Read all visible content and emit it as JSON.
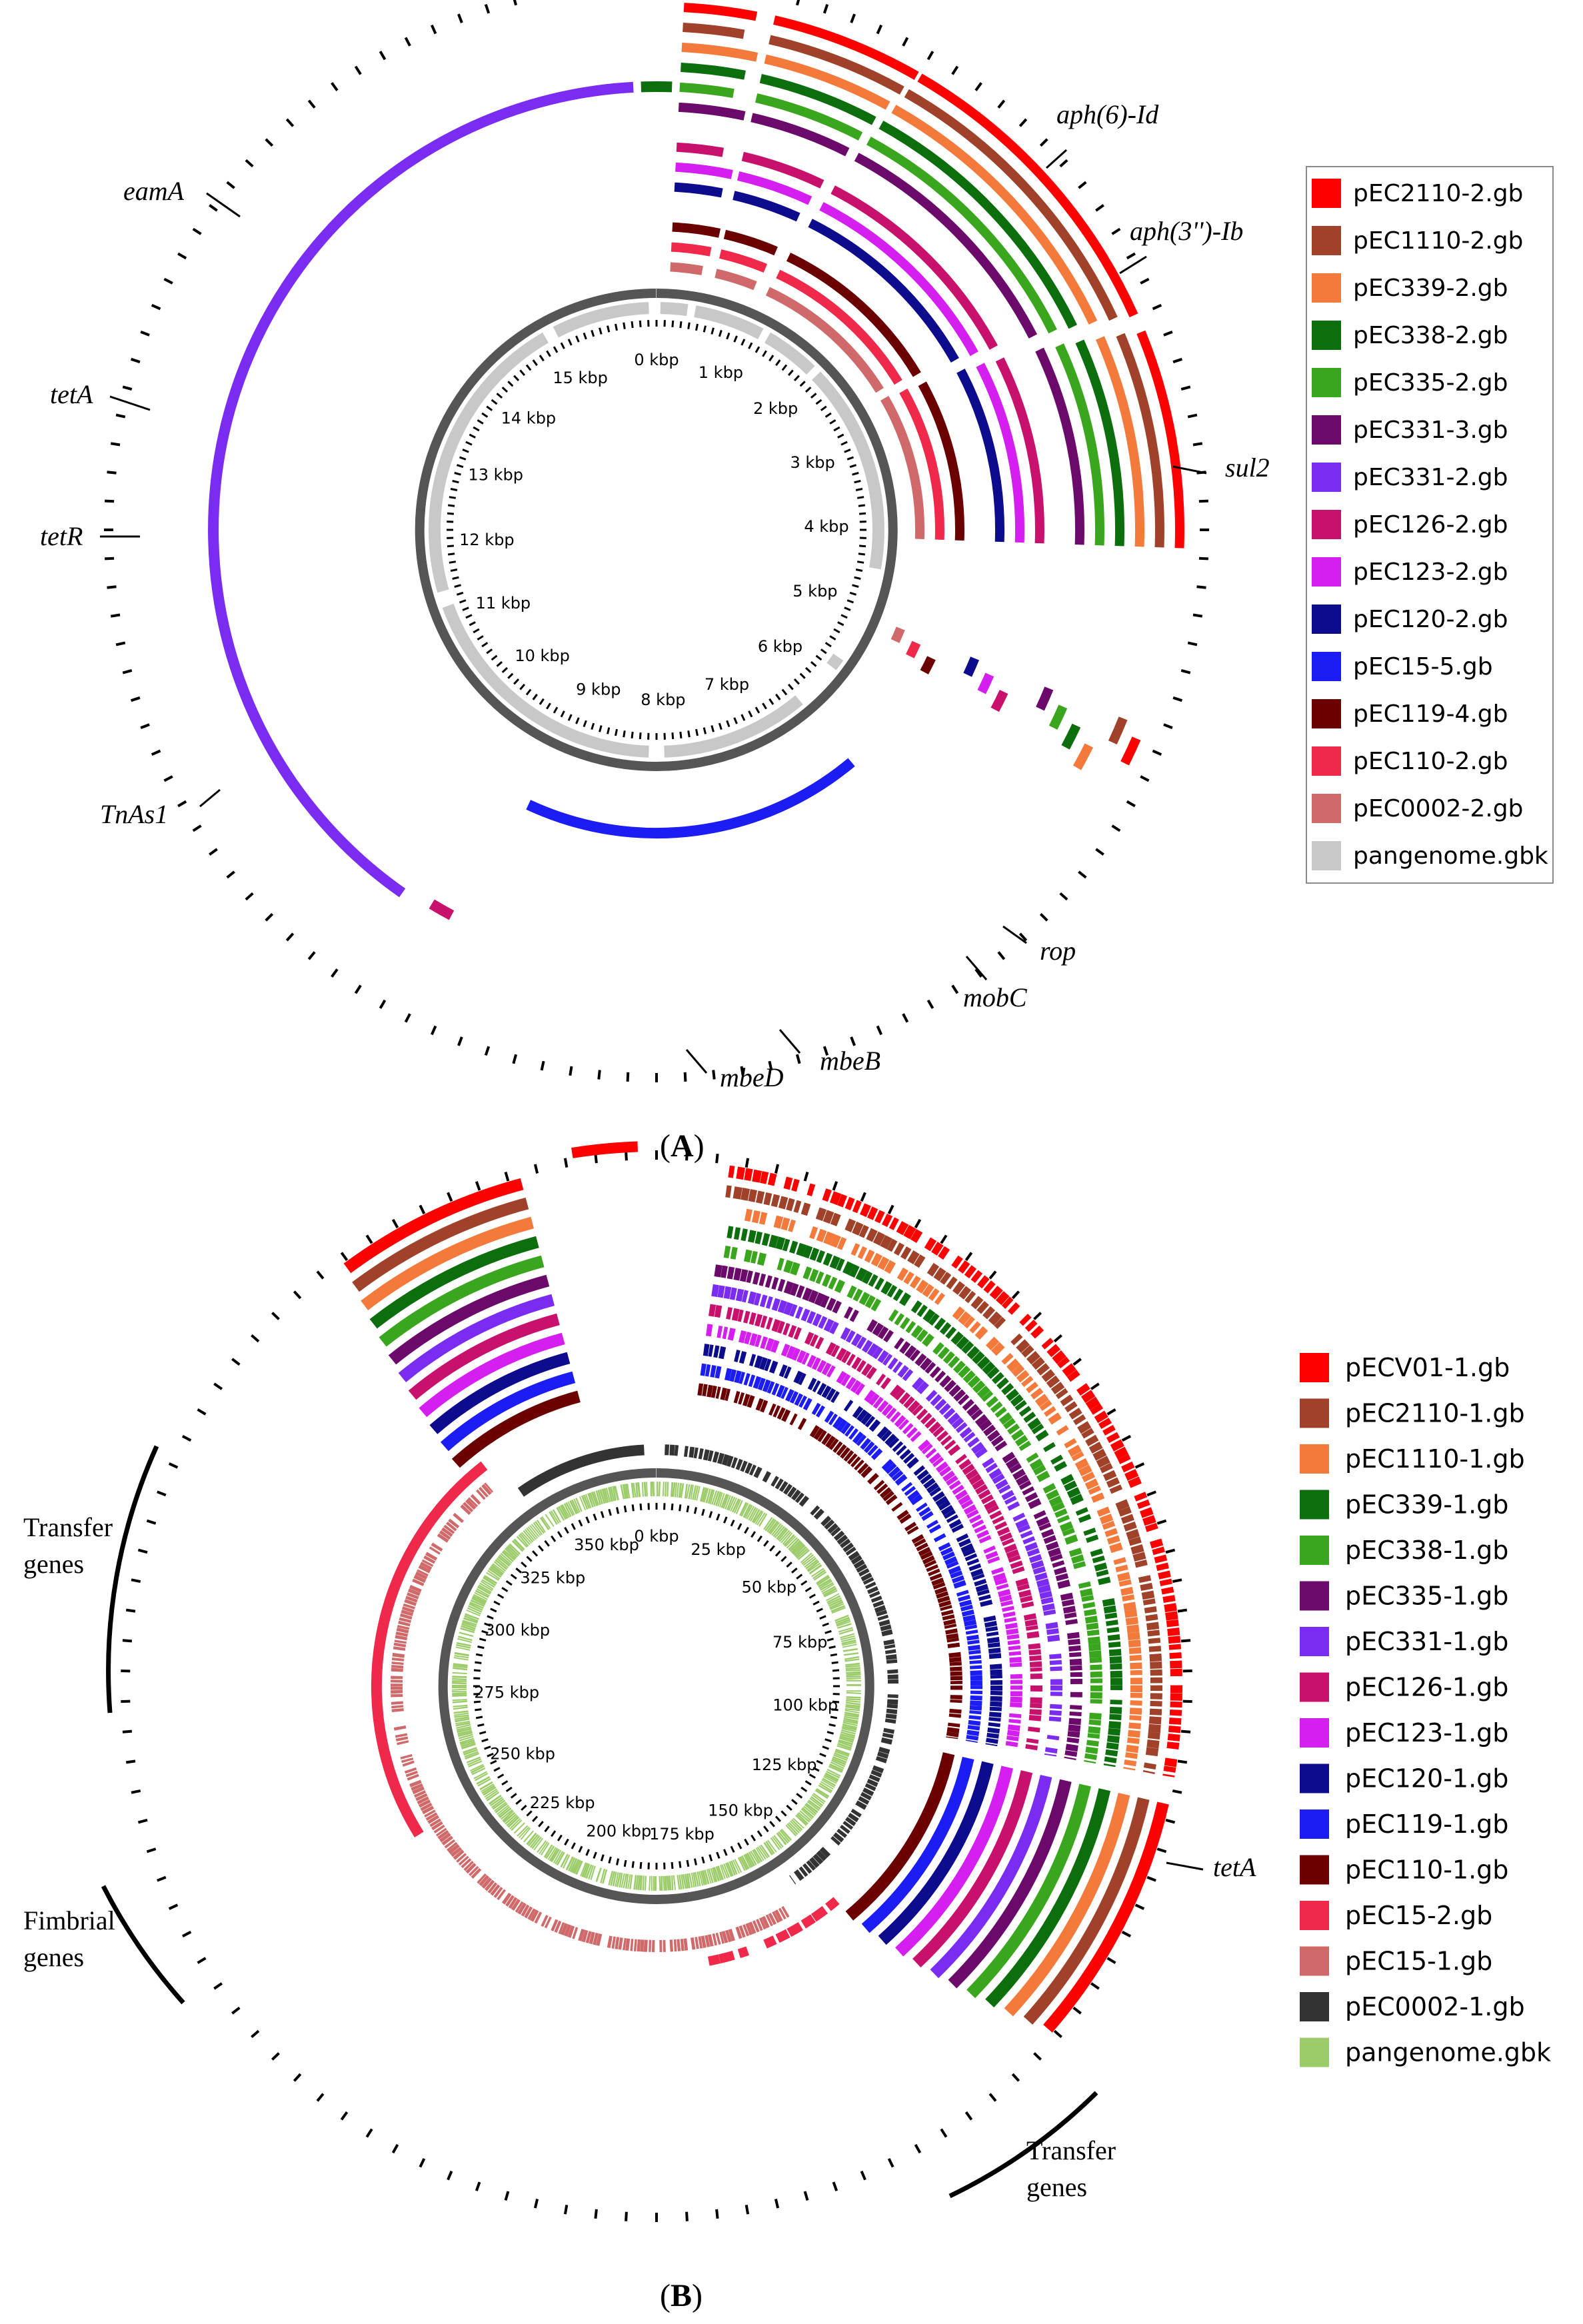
{
  "panels": [
    {
      "label": "(A)",
      "bold": "A",
      "backbone_color": "#c8c8c8",
      "scale_labels": [
        "0 kbp",
        "1 kbp",
        "2 kbp",
        "3 kbp",
        "4 kbp",
        "5 kbp",
        "6 kbp",
        "7 kbp",
        "8 kbp",
        "9 kbp",
        "10 kbp",
        "11 kbp",
        "12 kbp",
        "13 kbp",
        "14 kbp",
        "15 kbp"
      ],
      "legend": [
        {
          "name": "pEC2110-2.gb",
          "color": "#ff0000"
        },
        {
          "name": "pEC1110-2.gb",
          "color": "#a0422a"
        },
        {
          "name": "pEC339-2.gb",
          "color": "#f47a3c"
        },
        {
          "name": "pEC338-2.gb",
          "color": "#0c6e0c"
        },
        {
          "name": "pEC335-2.gb",
          "color": "#3aa61e"
        },
        {
          "name": "pEC331-3.gb",
          "color": "#6b0a6b"
        },
        {
          "name": "pEC331-2.gb",
          "color": "#7b2cf2"
        },
        {
          "name": "pEC126-2.gb",
          "color": "#c8116c"
        },
        {
          "name": "pEC123-2.gb",
          "color": "#d51ef0"
        },
        {
          "name": "pEC120-2.gb",
          "color": "#0c0c8c"
        },
        {
          "name": "pEC15-5.gb",
          "color": "#1c1cf4"
        },
        {
          "name": "pEC119-4.gb",
          "color": "#6a0000"
        },
        {
          "name": "pEC110-2.gb",
          "color": "#f0284a"
        },
        {
          "name": "pEC0002-2.gb",
          "color": "#d06a6a"
        },
        {
          "name": "pangenome.gbk",
          "color": "#c8c8c8"
        }
      ],
      "genes": [
        "aph(6)-Id",
        "aph(3'')-Ib",
        "sul2",
        "rop",
        "mobC",
        "mbeB",
        "mbeD",
        "TnAs1",
        "tetR",
        "tetA",
        "eamA"
      ]
    },
    {
      "label": "(B)",
      "bold": "B",
      "backbone_color": "#9ccc6a",
      "scale_labels": [
        "0 kbp",
        "25 kbp",
        "50 kbp",
        "75 kbp",
        "100 kbp",
        "125 kbp",
        "150 kbp",
        "175 kbp",
        "200 kbp",
        "225 kbp",
        "250 kbp",
        "275 kbp",
        "300 kbp",
        "325 kbp",
        "350 kbp"
      ],
      "legend": [
        {
          "name": "pECV01-1.gb",
          "color": "#ff0000"
        },
        {
          "name": "pEC2110-1.gb",
          "color": "#a0422a"
        },
        {
          "name": "pEC1110-1.gb",
          "color": "#f47a3c"
        },
        {
          "name": "pEC339-1.gb",
          "color": "#0c6e0c"
        },
        {
          "name": "pEC338-1.gb",
          "color": "#3aa61e"
        },
        {
          "name": "pEC335-1.gb",
          "color": "#6b0a6b"
        },
        {
          "name": "pEC331-1.gb",
          "color": "#7b2cf2"
        },
        {
          "name": "pEC126-1.gb",
          "color": "#c8116c"
        },
        {
          "name": "pEC123-1.gb",
          "color": "#d51ef0"
        },
        {
          "name": "pEC120-1.gb",
          "color": "#0c0c8c"
        },
        {
          "name": "pEC119-1.gb",
          "color": "#1c1cf4"
        },
        {
          "name": "pEC110-1.gb",
          "color": "#6a0000"
        },
        {
          "name": "pEC15-2.gb",
          "color": "#f0284a"
        },
        {
          "name": "pEC15-1.gb",
          "color": "#d06a6a"
        },
        {
          "name": "pEC0002-1.gb",
          "color": "#333333"
        },
        {
          "name": "pangenome.gbk",
          "color": "#9ccc6a"
        }
      ],
      "gene": "tetA",
      "groups": [
        {
          "line1": "Transfer",
          "line2": "genes"
        },
        {
          "line1": "Fimbrial",
          "line2": "genes"
        },
        {
          "line1": "Transfer",
          "line2": "genes"
        }
      ]
    }
  ]
}
